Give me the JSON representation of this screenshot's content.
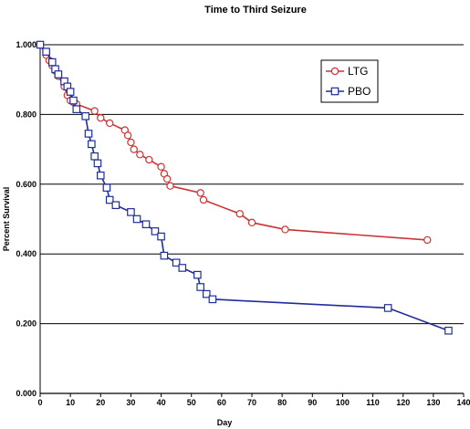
{
  "chart_data": {
    "type": "line",
    "title": "Time to Third Seizure",
    "xlabel": "Day",
    "ylabel": "Percent Survival",
    "xlim": [
      0,
      140
    ],
    "ylim": [
      0,
      1
    ],
    "x_ticks": [
      "0",
      "10",
      "20",
      "30",
      "40",
      "50",
      "60",
      "70",
      "80",
      "90",
      "100",
      "110",
      "120",
      "130",
      "140"
    ],
    "y_ticks": [
      "0.000",
      "0.200",
      "0.400",
      "0.600",
      "0.800",
      "1.000"
    ],
    "grid": "horizontal",
    "legend_position": "top-right",
    "series": [
      {
        "name": "LTG",
        "color": "#cc3333",
        "marker": "circle",
        "points": [
          [
            0,
            1.0
          ],
          [
            2,
            0.97
          ],
          [
            3,
            0.955
          ],
          [
            4,
            0.94
          ],
          [
            5,
            0.925
          ],
          [
            6,
            0.91
          ],
          [
            8,
            0.88
          ],
          [
            9,
            0.855
          ],
          [
            10,
            0.84
          ],
          [
            11,
            0.835
          ],
          [
            12,
            0.83
          ],
          [
            18,
            0.81
          ],
          [
            20,
            0.79
          ],
          [
            23,
            0.775
          ],
          [
            28,
            0.755
          ],
          [
            29,
            0.74
          ],
          [
            30,
            0.72
          ],
          [
            31,
            0.7
          ],
          [
            33,
            0.685
          ],
          [
            36,
            0.67
          ],
          [
            40,
            0.65
          ],
          [
            41,
            0.63
          ],
          [
            42,
            0.615
          ],
          [
            43,
            0.595
          ],
          [
            53,
            0.575
          ],
          [
            54,
            0.555
          ],
          [
            66,
            0.515
          ],
          [
            70,
            0.49
          ],
          [
            81,
            0.47
          ],
          [
            128,
            0.44
          ]
        ]
      },
      {
        "name": "PBO",
        "color": "#1f2d99",
        "marker": "square",
        "points": [
          [
            0,
            1.0
          ],
          [
            2,
            0.98
          ],
          [
            4,
            0.95
          ],
          [
            5,
            0.93
          ],
          [
            6,
            0.915
          ],
          [
            8,
            0.895
          ],
          [
            9,
            0.88
          ],
          [
            10,
            0.865
          ],
          [
            11,
            0.84
          ],
          [
            12,
            0.815
          ],
          [
            15,
            0.795
          ],
          [
            16,
            0.745
          ],
          [
            17,
            0.715
          ],
          [
            18,
            0.68
          ],
          [
            19,
            0.66
          ],
          [
            20,
            0.625
          ],
          [
            22,
            0.59
          ],
          [
            23,
            0.555
          ],
          [
            25,
            0.54
          ],
          [
            30,
            0.52
          ],
          [
            32,
            0.5
          ],
          [
            35,
            0.485
          ],
          [
            38,
            0.465
          ],
          [
            40,
            0.45
          ],
          [
            41,
            0.395
          ],
          [
            45,
            0.375
          ],
          [
            47,
            0.36
          ],
          [
            52,
            0.34
          ],
          [
            53,
            0.305
          ],
          [
            55,
            0.285
          ],
          [
            57,
            0.27
          ],
          [
            115,
            0.245
          ],
          [
            135,
            0.18
          ]
        ]
      }
    ]
  }
}
